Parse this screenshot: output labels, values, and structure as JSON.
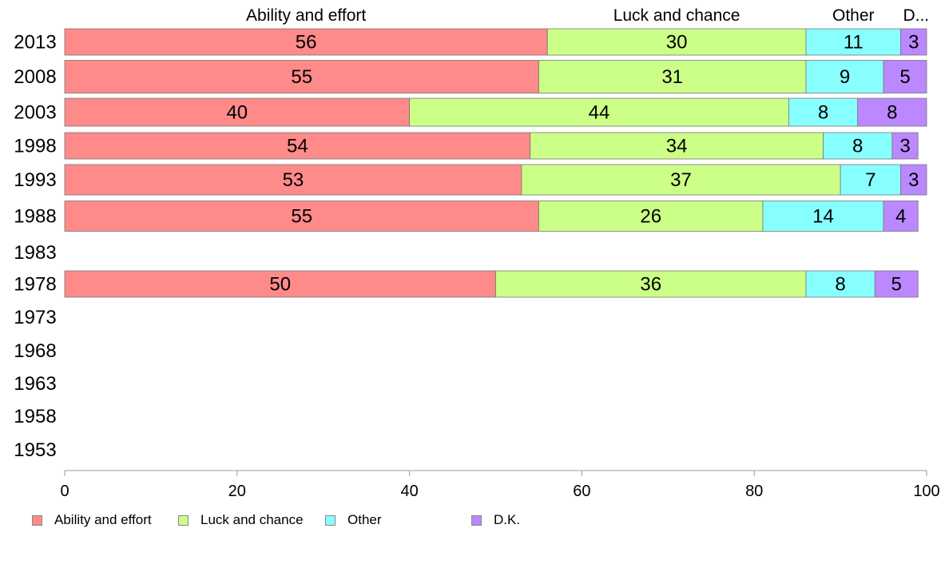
{
  "chart_data": {
    "type": "bar",
    "orientation": "horizontal",
    "stacked": true,
    "categories": [
      "2013",
      "2008",
      "2003",
      "1998",
      "1993",
      "1988",
      "1983",
      "1978",
      "1973",
      "1968",
      "1963",
      "1958",
      "1953"
    ],
    "series": [
      {
        "name": "Ability and effort",
        "short_label": "Ability and effort",
        "color": "#ff8a8a",
        "values": [
          56,
          55,
          40,
          54,
          53,
          55,
          null,
          50,
          null,
          null,
          null,
          null,
          null
        ]
      },
      {
        "name": "Luck and chance",
        "short_label": "Luck and chance",
        "color": "#ccff88",
        "values": [
          30,
          31,
          44,
          34,
          37,
          26,
          null,
          36,
          null,
          null,
          null,
          null,
          null
        ]
      },
      {
        "name": "Other",
        "short_label": "Other",
        "color": "#88ffff",
        "values": [
          11,
          9,
          8,
          8,
          7,
          14,
          null,
          8,
          null,
          null,
          null,
          null,
          null
        ]
      },
      {
        "name": "D.K.",
        "short_label": "D...",
        "color": "#bb88ff",
        "values": [
          3,
          5,
          8,
          3,
          3,
          4,
          null,
          5,
          null,
          null,
          null,
          null,
          null
        ]
      }
    ],
    "xlim": [
      0,
      100
    ],
    "xticks": [
      "0",
      "20",
      "40",
      "60",
      "80",
      "100"
    ],
    "title": "",
    "xlabel": "",
    "ylabel": "",
    "legend_position": "bottom-left"
  }
}
